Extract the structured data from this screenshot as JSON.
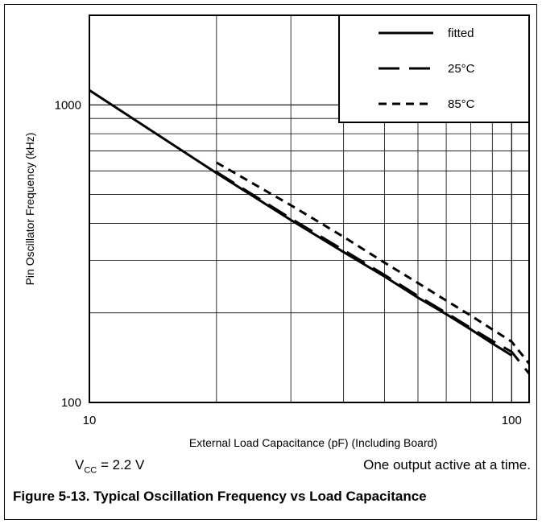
{
  "chart_data": {
    "type": "line",
    "title": "",
    "xlabel": "External Load Capacitance (pF) (Including Board)",
    "ylabel": "Pin Oscillator Frequency (kHz)",
    "x_scale": "log",
    "y_scale": "log",
    "xlim": [
      10,
      110
    ],
    "ylim": [
      100,
      2000
    ],
    "x_ticks": [
      10,
      100
    ],
    "y_ticks": [
      100,
      1000
    ],
    "x_tick_labels": [
      "10",
      "100"
    ],
    "y_tick_labels": [
      "100",
      "1000"
    ],
    "grid": true,
    "legend_position": "top-right",
    "series": [
      {
        "name": "fitted",
        "style": "solid",
        "x": [
          10,
          20,
          30,
          40,
          50,
          60,
          70,
          80,
          90,
          100
        ],
        "y": [
          1120,
          590,
          410,
          320,
          265,
          225,
          198,
          176,
          158,
          144
        ]
      },
      {
        "name": "25°C",
        "style": "long-dash",
        "x": [
          20,
          30,
          40,
          50,
          60,
          70,
          80,
          90,
          100,
          110
        ],
        "y": [
          595,
          415,
          325,
          268,
          228,
          200,
          178,
          161,
          148,
          125
        ]
      },
      {
        "name": "85°C",
        "style": "short-dash",
        "x": [
          20,
          30,
          40,
          50,
          60,
          70,
          80,
          90,
          100,
          110
        ],
        "y": [
          640,
          460,
          360,
          295,
          252,
          220,
          196,
          176,
          160,
          135
        ]
      }
    ]
  },
  "notes": {
    "vcc_prefix": "V",
    "vcc_sub": "CC",
    "vcc_value": " = 2.2 V",
    "output": "One output active at a time."
  },
  "caption": "Figure 5-13. Typical Oscillation Frequency vs Load Capacitance"
}
